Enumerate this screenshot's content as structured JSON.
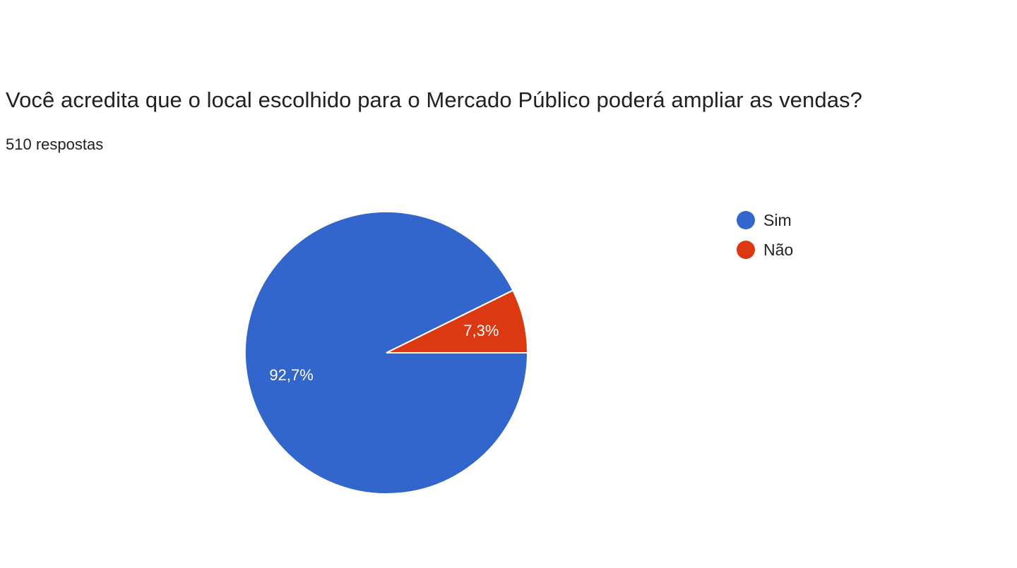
{
  "question": {
    "title": "Você acredita que o local escolhido para o Mercado Público poderá ampliar as vendas?",
    "response_count": "510 respostas"
  },
  "chart_data": {
    "type": "pie",
    "categories": [
      "Sim",
      "Não"
    ],
    "values": [
      92.7,
      7.3
    ],
    "labels": [
      "92,7%",
      "7,3%"
    ],
    "colors": [
      "#3366cc",
      "#dc3912"
    ],
    "legend_position": "right",
    "legend": [
      "Sim",
      "Não"
    ]
  }
}
